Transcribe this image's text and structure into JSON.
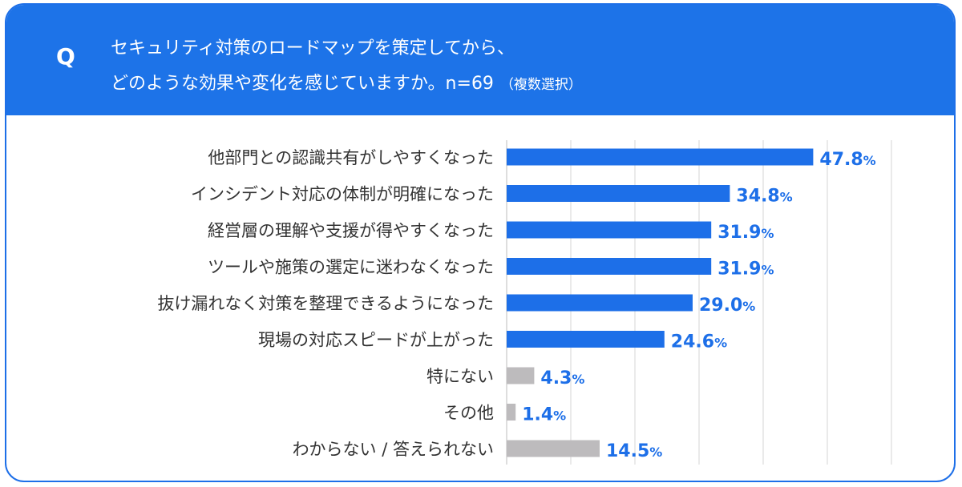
{
  "question": {
    "mark": "Q",
    "line1": "セキュリティ対策のロードマップを策定してから、",
    "line2": "どのような効果や変化を感じていますか。n=69",
    "note": "（複数選択）"
  },
  "colors": {
    "accent": "#1d73e8",
    "bar_main": "#1d6fe8",
    "bar_other": "#bdbbbd",
    "grid": "#d6d6d6"
  },
  "chart_data": {
    "type": "bar",
    "orientation": "horizontal",
    "categories": [
      "他部門との認識共有がしやすくなった",
      "インシデント対応の体制が明確になった",
      "経営層の理解や支援が得やすくなった",
      "ツールや施策の選定に迷わなくなった",
      "抜け漏れなく対策を整理できるようになった",
      "現場の対応スピードが上がった",
      "特にない",
      "その他",
      "わからない / 答えられない"
    ],
    "values": [
      47.8,
      34.8,
      31.9,
      31.9,
      29.0,
      24.6,
      4.3,
      1.4,
      14.5
    ],
    "value_labels": [
      "47.8",
      "34.8",
      "31.9",
      "31.9",
      "29.0",
      "24.6",
      "4.3",
      "1.4",
      "14.5"
    ],
    "unit": "%",
    "highlight": [
      true,
      true,
      true,
      true,
      true,
      true,
      false,
      false,
      false
    ],
    "xlim": [
      0,
      70
    ],
    "grid": true
  }
}
